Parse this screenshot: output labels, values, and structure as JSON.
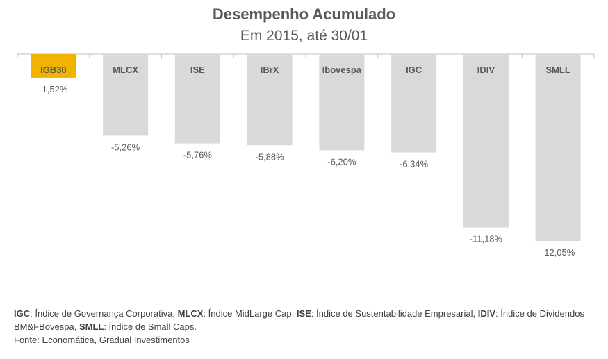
{
  "chart_data": {
    "type": "bar",
    "title": "Desempenho Acumulado",
    "subtitle": "Em 2015, até 30/01",
    "categories": [
      "IGB30",
      "MLCX",
      "ISE",
      "IBrX",
      "Ibovespa",
      "IGC",
      "IDIV",
      "SMLL"
    ],
    "values": [
      -1.52,
      -5.26,
      -5.76,
      -5.88,
      -6.2,
      -6.34,
      -11.18,
      -12.05
    ],
    "value_labels": [
      "-1,52%",
      "-5,26%",
      "-5,76%",
      "-5,88%",
      "-6,20%",
      "-6,34%",
      "-11,18%",
      "-12,05%"
    ],
    "ylim": [
      -12.05,
      0
    ],
    "grid": false,
    "highlight_category": "IGB30",
    "colors": {
      "bar": "#d9d9d9",
      "highlight": "#f0b400",
      "axis": "#bfbfbf",
      "text": "#595959"
    }
  },
  "footnote": {
    "line1": [
      {
        "term": "IGC",
        "desc": ": Índice de Governança Corporativa,  "
      },
      {
        "term": "MLCX",
        "desc": ": Índice MidLarge Cap,  "
      },
      {
        "term": "ISE",
        "desc": ": Índice de Sustentabilidade Empresarial, "
      },
      {
        "term": "IDIV",
        "desc": ": Índice de Dividendos BM&FBovespa, "
      },
      {
        "term": "SMLL",
        "desc": ": Índice de Small Caps."
      }
    ],
    "source": "Fonte: Economática, Gradual Investimentos"
  }
}
